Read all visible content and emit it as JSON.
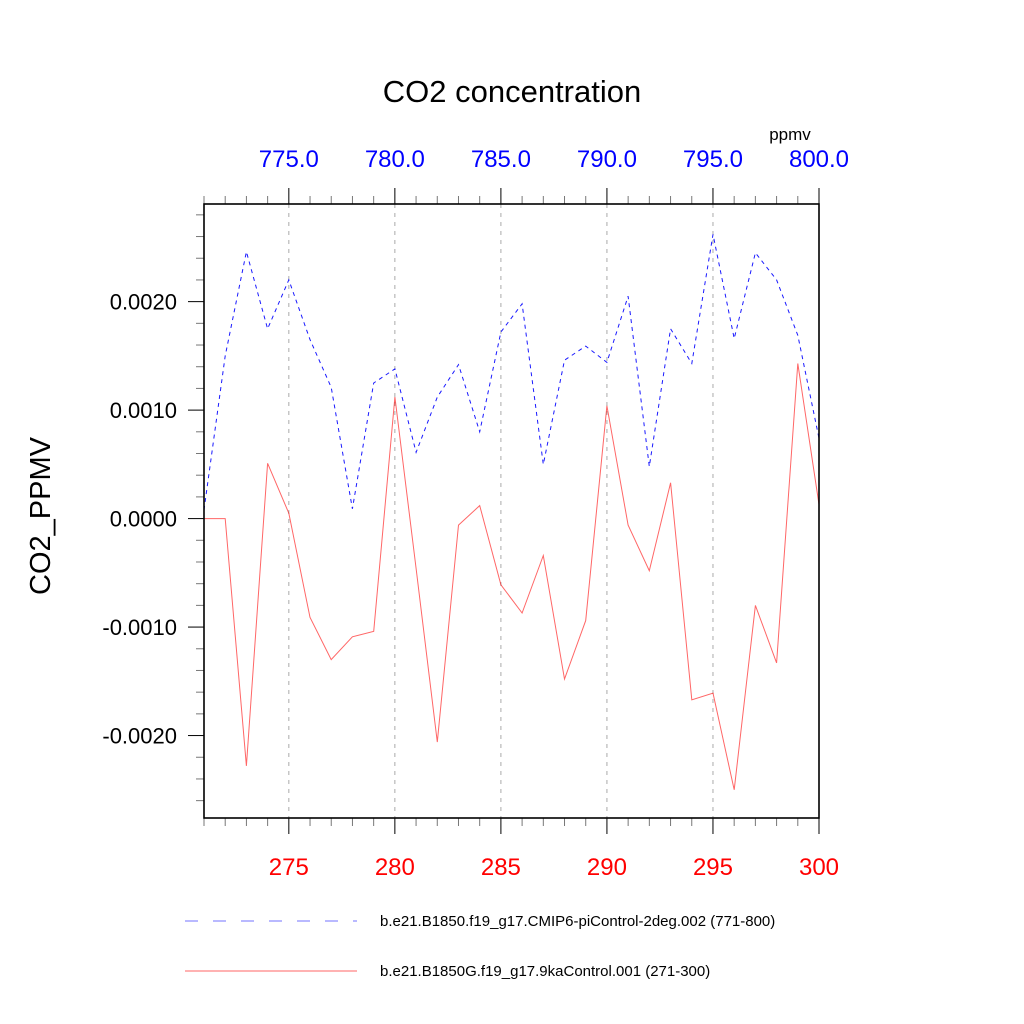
{
  "chart_data": {
    "type": "line",
    "title": "CO2 concentration",
    "ylabel": "CO2_PPMV",
    "xlabel": "",
    "top_axis_units": "ppmv",
    "xlim": [
      271,
      300
    ],
    "top_xlim": [
      771,
      800
    ],
    "ylim": [
      -0.00276,
      0.0029
    ],
    "grid": "vertical dashed at major x ticks",
    "yticks": [
      0.002,
      0.001,
      0.0,
      -0.001,
      -0.002
    ],
    "ytick_labels": [
      "0.0020",
      "0.0010",
      "0.0000",
      "-0.0010",
      "-0.0020"
    ],
    "xticks_bottom": [
      275,
      280,
      285,
      290,
      295,
      300
    ],
    "xtick_labels_bottom": [
      "275",
      "280",
      "285",
      "290",
      "295",
      "300"
    ],
    "xtick_color_bottom": "#ff0000",
    "xticks_top": [
      775,
      780,
      785,
      790,
      795,
      800
    ],
    "xtick_labels_top": [
      "775.0",
      "780.0",
      "785.0",
      "790.0",
      "795.0",
      "800.0"
    ],
    "xtick_color_top": "#0000ff",
    "x": [
      271,
      272,
      273,
      274,
      275,
      276,
      277,
      278,
      279,
      280,
      281,
      282,
      283,
      284,
      285,
      286,
      287,
      288,
      289,
      290,
      291,
      292,
      293,
      294,
      295,
      296,
      297,
      298,
      299,
      300
    ],
    "series": [
      {
        "name": "b.e21.B1850.f19_g17.CMIP6-piControl-2deg.002 (771-800)",
        "color": "#0000ff",
        "style": "dashed",
        "axis": "top",
        "values": [
          8e-05,
          0.0015,
          0.00246,
          0.00175,
          0.0022,
          0.00165,
          0.00121,
          9e-05,
          0.00125,
          0.00138,
          0.00061,
          0.00112,
          0.00142,
          0.0008,
          0.00172,
          0.00198,
          0.0005,
          0.00146,
          0.00159,
          0.00144,
          0.00205,
          0.00048,
          0.00175,
          0.00143,
          0.00262,
          0.00166,
          0.00245,
          0.0022,
          0.00169,
          0.00074
        ]
      },
      {
        "name": "b.e21.B1850G.f19_g17.9kaControl.001 (271-300)",
        "color": "#ff0000",
        "style": "solid",
        "axis": "bottom",
        "values": [
          0.0,
          0.0,
          -0.00228,
          0.00051,
          5e-05,
          -0.00091,
          -0.0013,
          -0.00109,
          -0.00104,
          0.00112,
          -0.00046,
          -0.00206,
          -6e-05,
          0.00012,
          -0.00061,
          -0.00087,
          -0.00034,
          -0.00148,
          -0.00094,
          0.00104,
          -6e-05,
          -0.00048,
          0.00033,
          -0.00167,
          -0.00161,
          -0.0025,
          -0.0008,
          -0.00133,
          0.00143,
          0.00013
        ]
      }
    ],
    "legend": {
      "placement": "bottom",
      "entries": [
        {
          "label": "b.e21.B1850.f19_g17.CMIP6-piControl-2deg.002 (771-800)",
          "color": "#0000ff",
          "style": "dashed"
        },
        {
          "label": "b.e21.B1850G.f19_g17.9kaControl.001 (271-300)",
          "color": "#ff0000",
          "style": "solid"
        }
      ]
    }
  }
}
